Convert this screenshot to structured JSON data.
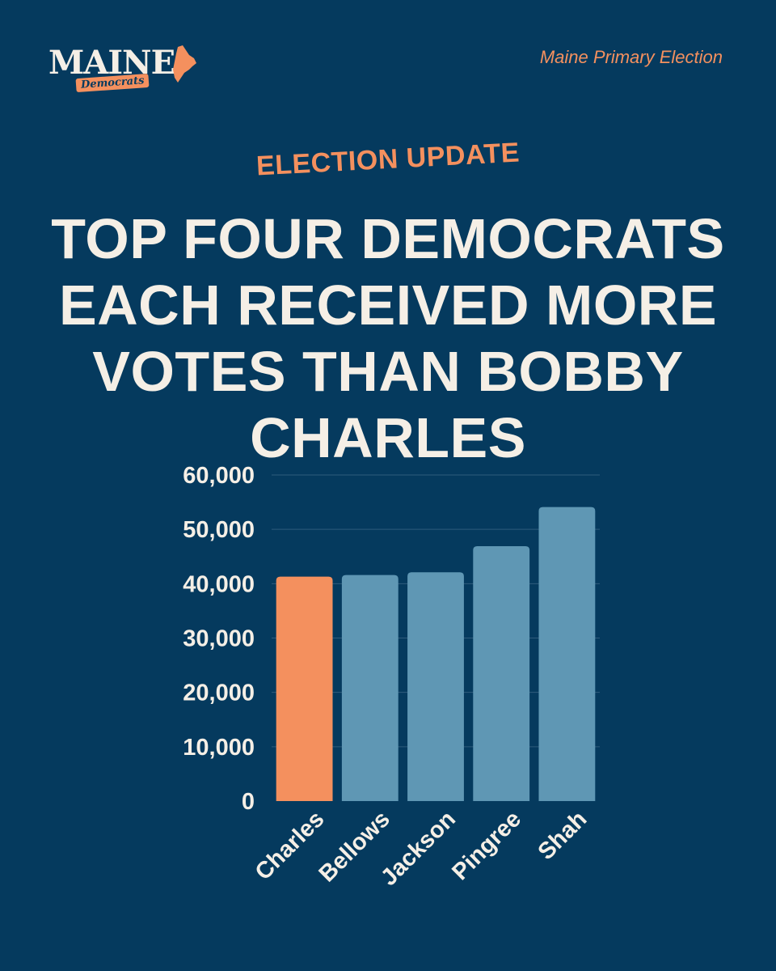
{
  "logo": {
    "word": "MAINE",
    "sub": "Democrats",
    "icon": "maine-state-icon"
  },
  "header": {
    "right_label": "Maine Primary Election"
  },
  "kicker": "ELECTION UPDATE",
  "headline": "TOP FOUR DEMOCRATS EACH RECEIVED MORE VOTES THAN BOBBY CHARLES",
  "colors": {
    "background": "#053a5e",
    "highlight": "#f4905e",
    "bar": "#5f97b4",
    "text": "#f5efe6"
  },
  "chart_data": {
    "type": "bar",
    "categories": [
      "Charles",
      "Bellows",
      "Jackson",
      "Pingree",
      "Shah"
    ],
    "values": [
      41300,
      41600,
      42100,
      46900,
      54100
    ],
    "highlight_index": 0,
    "yticks": [
      "0",
      "10,000",
      "20,000",
      "30,000",
      "40,000",
      "50,000",
      "60,000"
    ],
    "ylim": [
      0,
      60000
    ],
    "grid": true
  }
}
